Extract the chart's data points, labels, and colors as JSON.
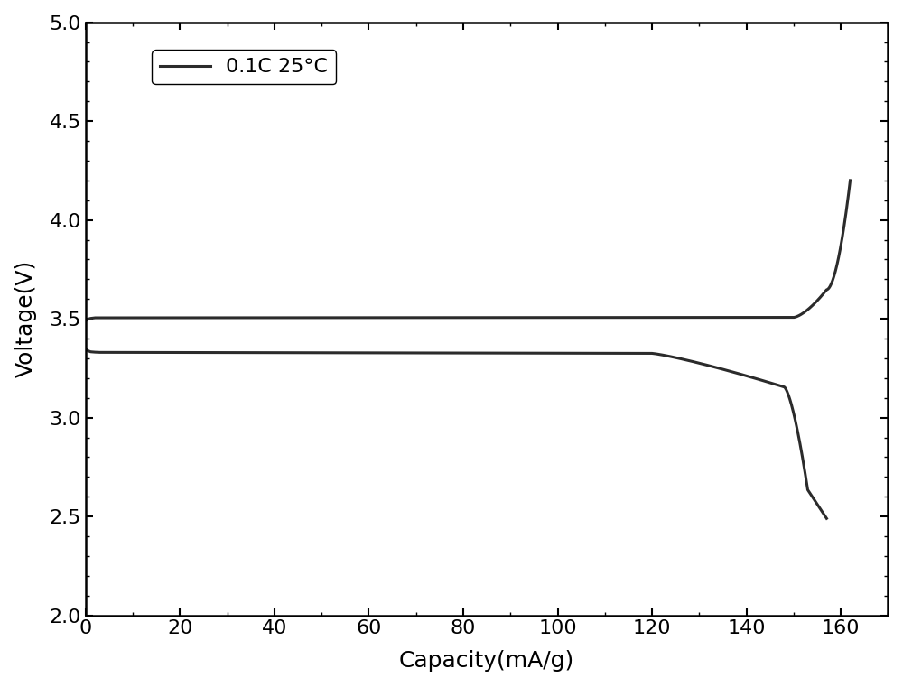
{
  "xlabel": "Capacity(mA/g)",
  "ylabel": "Voltage(V)",
  "xlim": [
    0,
    170
  ],
  "ylim": [
    2.0,
    5.0
  ],
  "xticks": [
    0,
    20,
    40,
    60,
    80,
    100,
    120,
    140,
    160
  ],
  "yticks": [
    2.0,
    2.5,
    3.0,
    3.5,
    4.0,
    4.5,
    5.0
  ],
  "legend_label": "0.1C 25°C",
  "line_color": "#2b2b2b",
  "line_width": 2.2,
  "background_color": "#ffffff",
  "xlabel_fontsize": 18,
  "ylabel_fontsize": 18,
  "tick_fontsize": 16,
  "legend_fontsize": 16
}
